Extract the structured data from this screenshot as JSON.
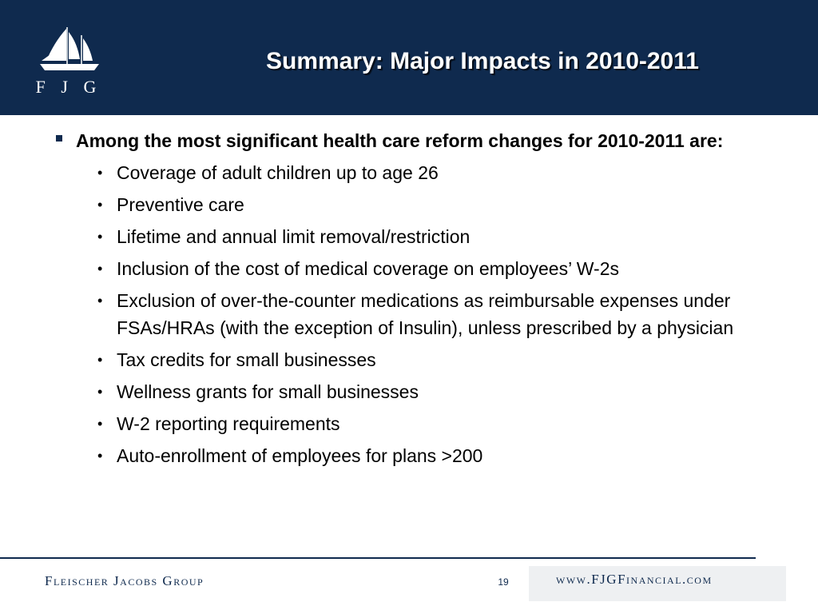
{
  "header": {
    "logo_letters": "F J G",
    "title": "Summary: Major Impacts in 2010-2011"
  },
  "content": {
    "lead": "Among the most significant health care reform changes for 2010-2011 are:",
    "items": [
      "Coverage of adult children up to age 26",
      "Preventive care",
      "Lifetime and annual limit removal/restriction",
      "Inclusion of the cost of medical coverage on employees’ W-2s",
      "Exclusion of over-the-counter medications as reimbursable expenses under FSAs/HRAs (with the exception of Insulin), unless prescribed by a physician",
      "Tax credits for small businesses",
      "Wellness grants for small businesses",
      "W-2 reporting requirements",
      "Auto-enrollment of employees for plans >200"
    ],
    "bullet_char": "•"
  },
  "footer": {
    "company": "Fleischer Jacobs Group",
    "page_number": "19",
    "url": "www.FJGFinancial.com"
  },
  "colors": {
    "brand_navy": "#0f2a4e",
    "text": "#000000",
    "background": "#ffffff"
  },
  "icons": {
    "logo": "sailing-ship-icon",
    "lead_bullet": "square-bullet-icon",
    "item_bullet": "round-bullet-icon"
  }
}
